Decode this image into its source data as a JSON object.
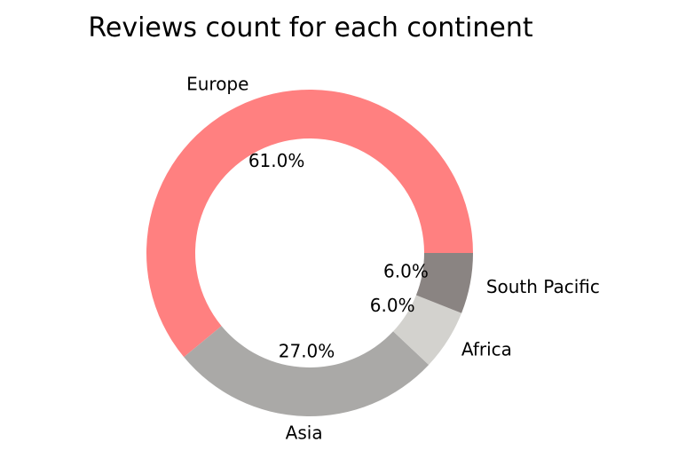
{
  "chart_data": {
    "type": "pie",
    "title": "Reviews count for each continent",
    "categories": [
      "Europe",
      "Asia",
      "Africa",
      "South Pacific"
    ],
    "values": [
      61.0,
      27.0,
      6.0,
      6.0
    ],
    "percent_labels": [
      "61.0%",
      "27.0%",
      "6.0%",
      "6.0%"
    ],
    "colors": [
      "#ff8080",
      "#aaa9a7",
      "#d3d2ce",
      "#8a8482"
    ],
    "donut": true,
    "start_angle_deg": 0,
    "direction": "counterclockwise"
  }
}
